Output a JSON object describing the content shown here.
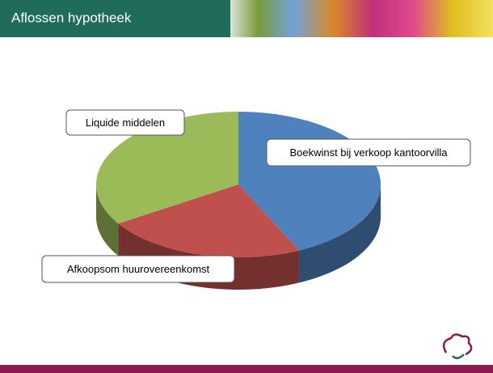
{
  "chart_data": {
    "type": "pie3d",
    "title": "Aflossen hypotheek",
    "categories": [
      "Boekwinst bij verkoop kantoorvilla",
      "Afkoopsom huurovereenkomst",
      "Liquide middelen"
    ],
    "values": [
      43,
      23,
      34
    ],
    "colors": [
      "#4f81bd",
      "#c0504d",
      "#9bbb59"
    ]
  }
}
